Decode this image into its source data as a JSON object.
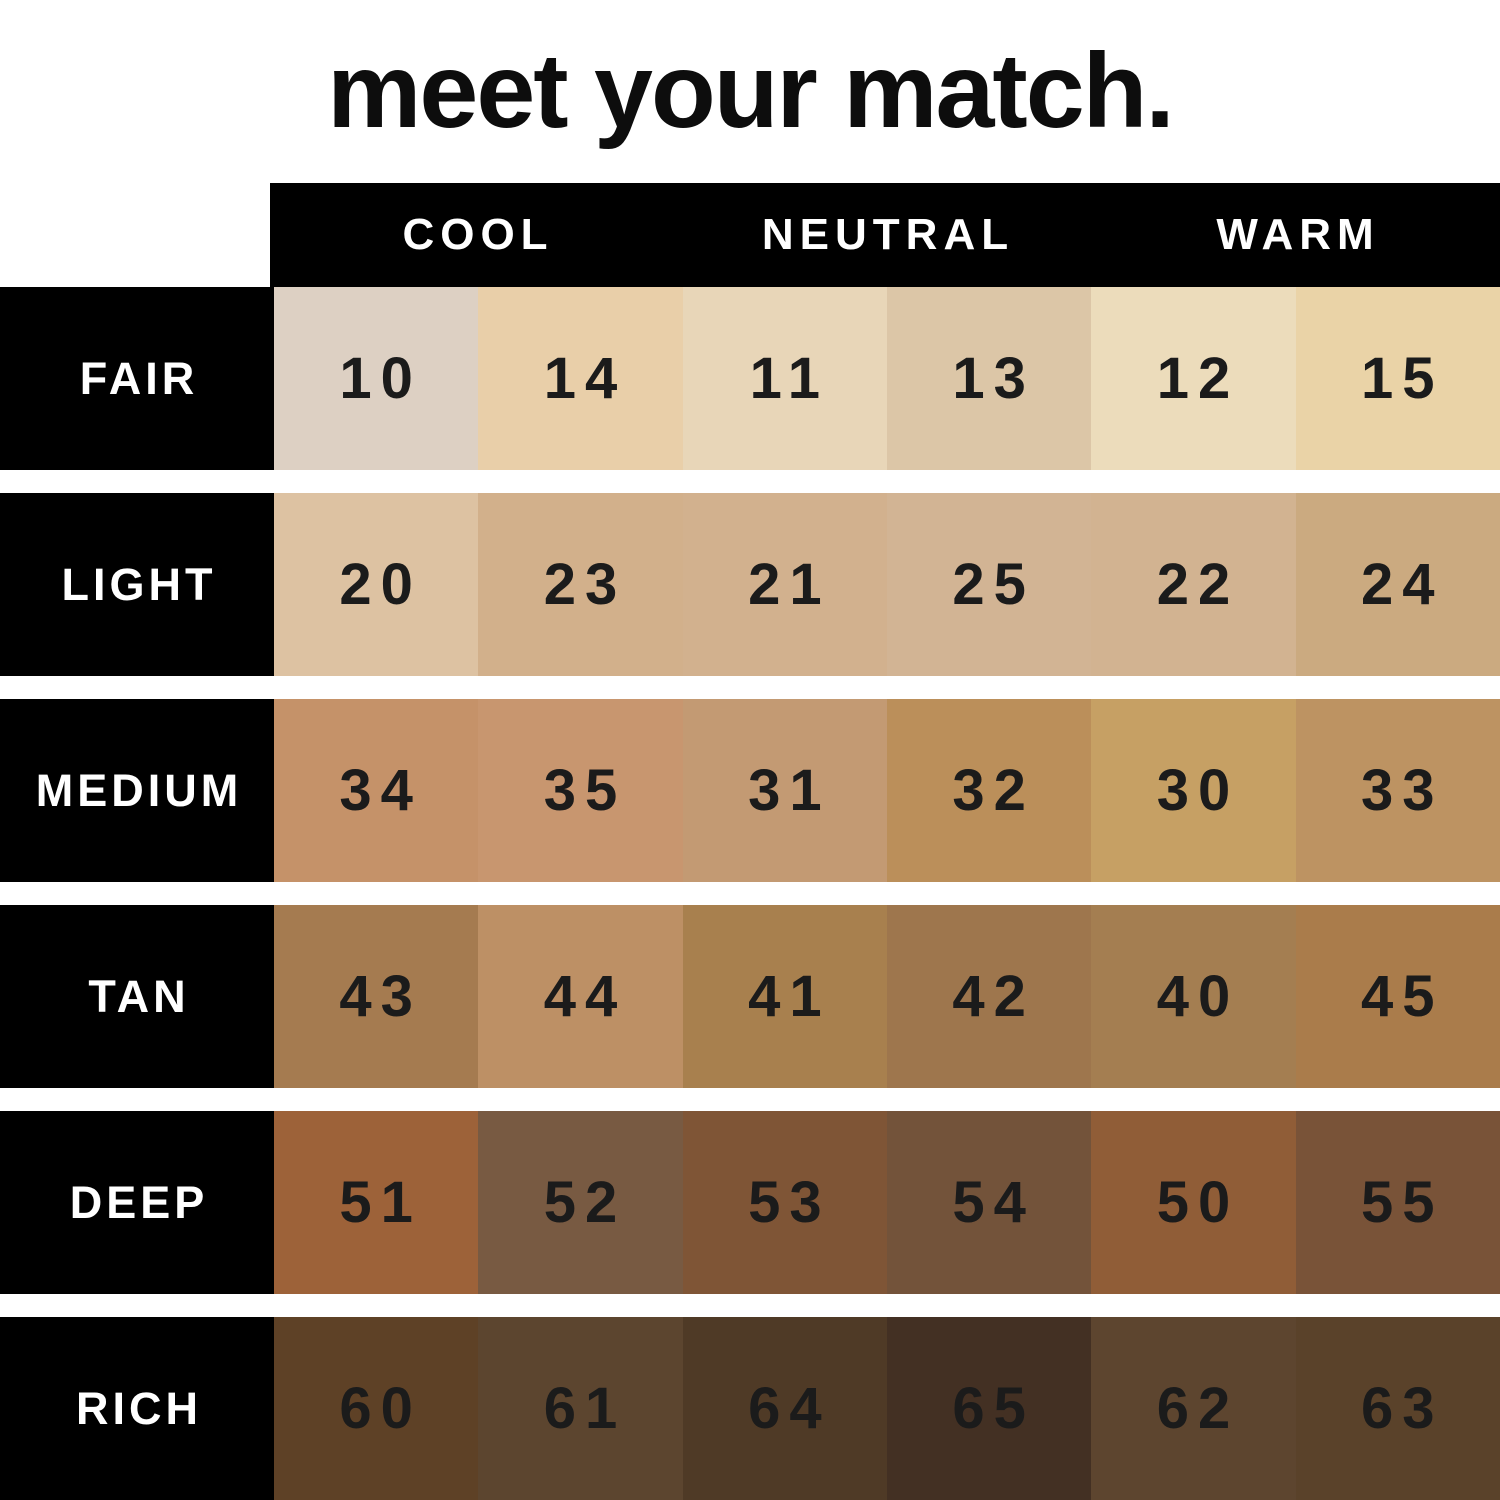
{
  "title": "meet your match.",
  "column_headers": [
    "COOL",
    "NEUTRAL",
    "WARM"
  ],
  "rows": [
    {
      "label": "FAIR",
      "swatches": [
        {
          "number": "10",
          "color": "#ddd0c3"
        },
        {
          "number": "14",
          "color": "#e9cfa9"
        },
        {
          "number": "11",
          "color": "#e8d6b8"
        },
        {
          "number": "13",
          "color": "#dcc6a7"
        },
        {
          "number": "12",
          "color": "#ecdcbb"
        },
        {
          "number": "15",
          "color": "#ead3a7"
        }
      ]
    },
    {
      "label": "LIGHT",
      "swatches": [
        {
          "number": "20",
          "color": "#ddc2a2"
        },
        {
          "number": "23",
          "color": "#d2b08b"
        },
        {
          "number": "21",
          "color": "#d2b18e"
        },
        {
          "number": "25",
          "color": "#d2b494"
        },
        {
          "number": "22",
          "color": "#d2b391"
        },
        {
          "number": "24",
          "color": "#cbaa80"
        }
      ]
    },
    {
      "label": "MEDIUM",
      "swatches": [
        {
          "number": "34",
          "color": "#c59269"
        },
        {
          "number": "35",
          "color": "#c8966f"
        },
        {
          "number": "31",
          "color": "#c39a73"
        },
        {
          "number": "32",
          "color": "#bb8f5a"
        },
        {
          "number": "30",
          "color": "#c6a064"
        },
        {
          "number": "33",
          "color": "#bd9362"
        }
      ]
    },
    {
      "label": "TAN",
      "swatches": [
        {
          "number": "43",
          "color": "#a57b50"
        },
        {
          "number": "44",
          "color": "#bd9065"
        },
        {
          "number": "41",
          "color": "#a8804e"
        },
        {
          "number": "42",
          "color": "#9e764d"
        },
        {
          "number": "40",
          "color": "#a47e51"
        },
        {
          "number": "45",
          "color": "#aa7c4b"
        }
      ]
    },
    {
      "label": "DEEP",
      "swatches": [
        {
          "number": "51",
          "color": "#9d6239"
        },
        {
          "number": "52",
          "color": "#785a42"
        },
        {
          "number": "53",
          "color": "#7f5536"
        },
        {
          "number": "54",
          "color": "#73533a"
        },
        {
          "number": "50",
          "color": "#905d37"
        },
        {
          "number": "55",
          "color": "#795338"
        }
      ]
    },
    {
      "label": "RICH",
      "swatches": [
        {
          "number": "60",
          "color": "#5e4126"
        },
        {
          "number": "61",
          "color": "#5c452f"
        },
        {
          "number": "64",
          "color": "#4f3a26"
        },
        {
          "number": "65",
          "color": "#433023"
        },
        {
          "number": "62",
          "color": "#5d452f"
        },
        {
          "number": "63",
          "color": "#5a422a"
        }
      ]
    }
  ],
  "colors": {
    "bar_background": "#000000",
    "label_text": "#ffffff",
    "number_text": "#1b1b1b",
    "page_background": "#ffffff"
  },
  "chart_data": {
    "type": "table",
    "title": "meet your match.",
    "column_groups": [
      "COOL",
      "NEUTRAL",
      "WARM"
    ],
    "columns_per_group": 2,
    "row_labels": [
      "FAIR",
      "LIGHT",
      "MEDIUM",
      "TAN",
      "DEEP",
      "RICH"
    ],
    "values": [
      [
        10,
        14,
        11,
        13,
        12,
        15
      ],
      [
        20,
        23,
        21,
        25,
        22,
        24
      ],
      [
        34,
        35,
        31,
        32,
        30,
        33
      ],
      [
        43,
        44,
        41,
        42,
        40,
        45
      ],
      [
        51,
        52,
        53,
        54,
        50,
        55
      ],
      [
        60,
        61,
        64,
        65,
        62,
        63
      ]
    ],
    "cell_colors": [
      [
        "#ddd0c3",
        "#e9cfa9",
        "#e8d6b8",
        "#dcc6a7",
        "#ecdcbb",
        "#ead3a7"
      ],
      [
        "#ddc2a2",
        "#d2b08b",
        "#d2b18e",
        "#d2b494",
        "#d2b391",
        "#cbaa80"
      ],
      [
        "#c59269",
        "#c8966f",
        "#c39a73",
        "#bb8f5a",
        "#c6a064",
        "#bd9362"
      ],
      [
        "#a57b50",
        "#bd9065",
        "#a8804e",
        "#9e764d",
        "#a47e51",
        "#aa7c4b"
      ],
      [
        "#9d6239",
        "#785a42",
        "#7f5536",
        "#73533a",
        "#905d37",
        "#795338"
      ],
      [
        "#5e4126",
        "#5c452f",
        "#4f3a26",
        "#433023",
        "#5d452f",
        "#5a422a"
      ]
    ],
    "legend_position": "none",
    "grid": false
  }
}
